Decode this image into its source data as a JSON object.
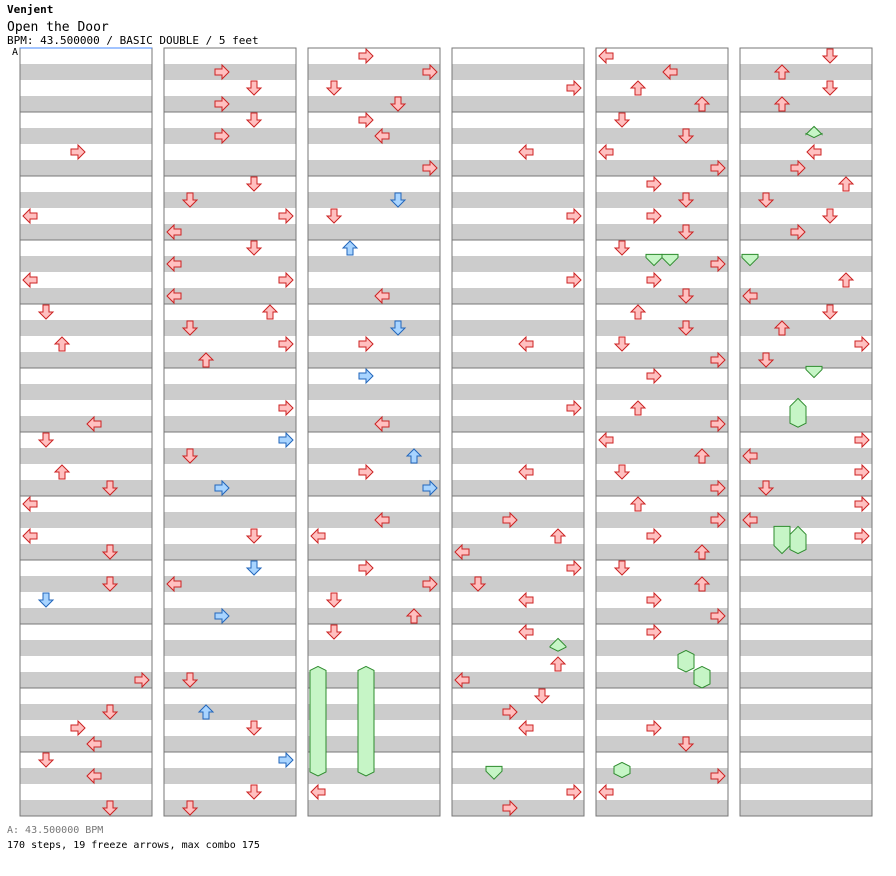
{
  "song": {
    "artist": "Venjent",
    "title": "Open the Door",
    "info": "BPM: 43.500000 / BASIC DOUBLE / 5 feet",
    "bpm_marker": "A",
    "bpm_legend": "A: 43.500000 BPM",
    "stats": "170 steps, 19 freeze arrows, max combo 175"
  },
  "colors": {
    "stripe_gray": "#cccccc",
    "stripe_white": "#ffffff",
    "measure_line": "#777777",
    "arrow_red_fill": "#ffc0c0",
    "arrow_red_stroke": "#cc2222",
    "arrow_blue_fill": "#a8d4ff",
    "arrow_blue_stroke": "#2266bb",
    "freeze_fill": "#c6f5c6",
    "freeze_stroke": "#2e8b2e",
    "bpm_line": "#4488ff"
  },
  "columns": [
    {
      "arrows": [
        [
          6,
          "R",
          "r"
        ],
        [
          10,
          "L",
          "r"
        ],
        [
          14,
          "L",
          "r"
        ],
        [
          16,
          "D",
          "r"
        ],
        [
          18,
          "U",
          "r"
        ],
        [
          23,
          "L",
          "r"
        ],
        [
          24,
          "D",
          "r"
        ],
        [
          26,
          "U",
          "r"
        ],
        [
          27,
          "D",
          "r"
        ],
        [
          28,
          "L",
          "r"
        ],
        [
          30,
          "L",
          "r"
        ],
        [
          31,
          "D",
          "r"
        ],
        [
          33,
          "D",
          "r"
        ],
        [
          34,
          "D",
          "b"
        ],
        [
          39,
          "R",
          "r"
        ],
        [
          41,
          "D",
          "r"
        ],
        [
          42,
          "R",
          "r"
        ],
        [
          43,
          "L",
          "r"
        ],
        [
          44,
          "D",
          "r"
        ],
        [
          45,
          "L",
          "r"
        ],
        [
          47,
          "D",
          "r"
        ]
      ],
      "freezes": [
        [
          36,
          "D",
          35.9,
          39.3
        ],
        [
          36,
          "U",
          35.9,
          39.3
        ]
      ]
    },
    {
      "arrows": [
        [
          1,
          "R",
          "r"
        ],
        [
          2,
          "D",
          "r"
        ],
        [
          3,
          "R",
          "r"
        ],
        [
          4,
          "D",
          "r"
        ],
        [
          5,
          "R",
          "r"
        ],
        [
          8,
          "D",
          "r"
        ],
        [
          9,
          "D",
          "r"
        ],
        [
          10,
          "R",
          "r"
        ],
        [
          11,
          "L",
          "r"
        ],
        [
          12,
          "D",
          "r"
        ],
        [
          13,
          "L",
          "r"
        ],
        [
          14,
          "R",
          "r"
        ],
        [
          15,
          "L",
          "r"
        ],
        [
          16,
          "U",
          "r"
        ],
        [
          17,
          "D",
          "r"
        ],
        [
          18,
          "R",
          "r"
        ],
        [
          19,
          "U",
          "r"
        ],
        [
          22,
          "R",
          "r"
        ],
        [
          24,
          "R",
          "b"
        ],
        [
          25,
          "D",
          "r"
        ],
        [
          27,
          "R",
          "b"
        ],
        [
          30,
          "D",
          "r"
        ],
        [
          32,
          "D",
          "b"
        ],
        [
          33,
          "L",
          "r"
        ],
        [
          35,
          "R",
          "b"
        ],
        [
          39,
          "D",
          "r"
        ],
        [
          41,
          "U",
          "b"
        ],
        [
          42,
          "D",
          "r"
        ],
        [
          44,
          "R",
          "b"
        ],
        [
          46,
          "D",
          "r"
        ],
        [
          47,
          "D",
          "r"
        ]
      ],
      "freezes": [
        [
          20,
          "R",
          19.9,
          21.4
        ],
        [
          21,
          "R",
          19.9,
          21.4
        ]
      ]
    },
    {
      "arrows": [
        [
          0,
          "R",
          "r"
        ],
        [
          1,
          "R",
          "r"
        ],
        [
          2,
          "D",
          "r"
        ],
        [
          3,
          "D",
          "r"
        ],
        [
          4,
          "R",
          "r"
        ],
        [
          5,
          "L",
          "r"
        ],
        [
          7,
          "R",
          "r"
        ],
        [
          9,
          "D",
          "b"
        ],
        [
          10,
          "D",
          "r"
        ],
        [
          12,
          "U",
          "b"
        ],
        [
          15,
          "L",
          "r"
        ],
        [
          17,
          "D",
          "b"
        ],
        [
          18,
          "R",
          "r"
        ],
        [
          20,
          "R",
          "b"
        ],
        [
          23,
          "L",
          "r"
        ],
        [
          25,
          "U",
          "b"
        ],
        [
          26,
          "R",
          "r"
        ],
        [
          27,
          "R",
          "b"
        ],
        [
          29,
          "L",
          "r"
        ],
        [
          30,
          "L",
          "r"
        ],
        [
          32,
          "R",
          "r"
        ],
        [
          33,
          "R",
          "r"
        ],
        [
          34,
          "D",
          "r"
        ],
        [
          35,
          "U",
          "r"
        ],
        [
          36,
          "D",
          "r"
        ],
        [
          46,
          "L",
          "r"
        ]
      ],
      "freezes": [
        [
          0,
          "L",
          38.9,
          45.5
        ],
        [
          3,
          "R",
          38.9,
          45.5
        ]
      ]
    },
    {
      "arrows": [
        [
          2,
          "R",
          "r"
        ],
        [
          6,
          "L",
          "r"
        ],
        [
          10,
          "R",
          "r"
        ],
        [
          14,
          "R",
          "r"
        ],
        [
          18,
          "L",
          "r"
        ],
        [
          22,
          "R",
          "r"
        ],
        [
          26,
          "L",
          "r"
        ],
        [
          29,
          "R",
          "r"
        ],
        [
          30,
          "U",
          "r"
        ],
        [
          31,
          "L",
          "r"
        ],
        [
          32,
          "R",
          "r"
        ],
        [
          33,
          "D",
          "r"
        ],
        [
          34,
          "L",
          "r"
        ],
        [
          36,
          "L",
          "r"
        ],
        [
          38,
          "U",
          "r"
        ],
        [
          39,
          "L",
          "r"
        ],
        [
          40,
          "D",
          "r"
        ],
        [
          41,
          "R",
          "r"
        ],
        [
          42,
          "L",
          "r"
        ],
        [
          46,
          "R",
          "r"
        ],
        [
          47,
          "R",
          "r"
        ]
      ],
      "freezes": [
        [
          6,
          "U",
          36.9,
          37.7
        ],
        [
          2,
          "D",
          44.9,
          45.7
        ]
      ]
    },
    {
      "arrows": [
        [
          0,
          "L",
          "r"
        ],
        [
          1,
          "L",
          "r"
        ],
        [
          2,
          "U",
          "r"
        ],
        [
          3,
          "U",
          "r"
        ],
        [
          4,
          "D",
          "r"
        ],
        [
          5,
          "D",
          "r"
        ],
        [
          6,
          "L",
          "r"
        ],
        [
          7,
          "R",
          "r"
        ],
        [
          8,
          "R",
          "r"
        ],
        [
          9,
          "D",
          "r"
        ],
        [
          10,
          "R",
          "r"
        ],
        [
          11,
          "D",
          "r"
        ],
        [
          12,
          "D",
          "r"
        ],
        [
          13,
          "R",
          "r"
        ],
        [
          14,
          "R",
          "r"
        ],
        [
          15,
          "D",
          "r"
        ],
        [
          16,
          "U",
          "r"
        ],
        [
          17,
          "D",
          "r"
        ],
        [
          18,
          "D",
          "r"
        ],
        [
          19,
          "R",
          "r"
        ],
        [
          20,
          "R",
          "r"
        ],
        [
          22,
          "U",
          "r"
        ],
        [
          23,
          "R",
          "r"
        ],
        [
          24,
          "L",
          "r"
        ],
        [
          25,
          "U",
          "r"
        ],
        [
          26,
          "D",
          "r"
        ],
        [
          27,
          "R",
          "r"
        ],
        [
          28,
          "U",
          "r"
        ],
        [
          29,
          "R",
          "r"
        ],
        [
          30,
          "R",
          "r"
        ],
        [
          31,
          "U",
          "r"
        ],
        [
          32,
          "D",
          "r"
        ],
        [
          33,
          "U",
          "r"
        ],
        [
          34,
          "R",
          "r"
        ],
        [
          35,
          "R",
          "r"
        ],
        [
          36,
          "R",
          "r"
        ],
        [
          42,
          "R",
          "r"
        ],
        [
          43,
          "D",
          "r"
        ],
        [
          45,
          "R",
          "r"
        ],
        [
          46,
          "L",
          "r"
        ]
      ],
      "freezes": [
        [
          3,
          "D",
          12.9,
          13.6
        ],
        [
          4,
          "D",
          12.9,
          13.6
        ],
        [
          5,
          "R",
          37.9,
          39.0
        ],
        [
          6,
          "L",
          38.9,
          40.0
        ],
        [
          1,
          "R",
          44.9,
          45.6
        ]
      ]
    },
    {
      "arrows": [
        [
          0,
          "D",
          "r"
        ],
        [
          1,
          "U",
          "r"
        ],
        [
          2,
          "D",
          "r"
        ],
        [
          3,
          "U",
          "r"
        ],
        [
          6,
          "L",
          "r"
        ],
        [
          7,
          "R",
          "r"
        ],
        [
          8,
          "U",
          "r"
        ],
        [
          9,
          "D",
          "r"
        ],
        [
          10,
          "D",
          "r"
        ],
        [
          11,
          "R",
          "r"
        ],
        [
          14,
          "U",
          "r"
        ],
        [
          15,
          "L",
          "r"
        ],
        [
          16,
          "D",
          "r"
        ],
        [
          17,
          "U",
          "r"
        ],
        [
          18,
          "R",
          "r"
        ],
        [
          19,
          "D",
          "r"
        ],
        [
          24,
          "R",
          "r"
        ],
        [
          25,
          "L",
          "r"
        ],
        [
          26,
          "R",
          "r"
        ],
        [
          27,
          "D",
          "r"
        ],
        [
          28,
          "R",
          "r"
        ],
        [
          29,
          "L",
          "r"
        ],
        [
          30,
          "R",
          "r"
        ]
      ],
      "freezes": [
        [
          4,
          "U",
          4.9,
          5.6
        ],
        [
          0,
          "D",
          12.9,
          13.6
        ],
        [
          4,
          "D",
          19.9,
          20.6
        ],
        [
          3,
          "U",
          21.9,
          23.7
        ],
        [
          2,
          "D",
          29.9,
          31.6
        ],
        [
          3,
          "U",
          29.9,
          31.6
        ]
      ]
    }
  ]
}
